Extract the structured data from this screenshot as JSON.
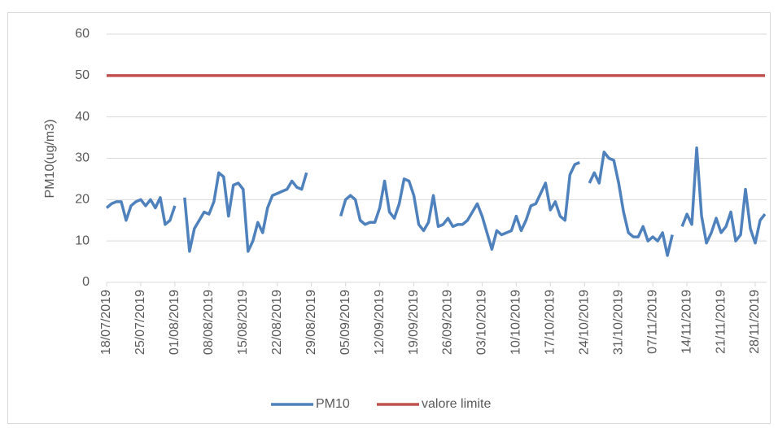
{
  "chart_data": {
    "type": "line",
    "y_label": "PM10(ug/m3)",
    "x": [
      "2019-07-18",
      "2019-07-19",
      "2019-07-20",
      "2019-07-21",
      "2019-07-22",
      "2019-07-23",
      "2019-07-24",
      "2019-07-25",
      "2019-07-26",
      "2019-07-27",
      "2019-07-28",
      "2019-07-29",
      "2019-07-30",
      "2019-07-31",
      "2019-08-01",
      "2019-08-02",
      "2019-08-03",
      "2019-08-04",
      "2019-08-05",
      "2019-08-06",
      "2019-08-07",
      "2019-08-08",
      "2019-08-09",
      "2019-08-10",
      "2019-08-11",
      "2019-08-12",
      "2019-08-13",
      "2019-08-14",
      "2019-08-15",
      "2019-08-16",
      "2019-08-17",
      "2019-08-18",
      "2019-08-19",
      "2019-08-20",
      "2019-08-21",
      "2019-08-22",
      "2019-08-23",
      "2019-08-24",
      "2019-08-25",
      "2019-08-26",
      "2019-08-27",
      "2019-08-28",
      "2019-08-29",
      "2019-08-30",
      "2019-08-31",
      "2019-09-01",
      "2019-09-02",
      "2019-09-03",
      "2019-09-04",
      "2019-09-05",
      "2019-09-06",
      "2019-09-07",
      "2019-09-08",
      "2019-09-09",
      "2019-09-10",
      "2019-09-11",
      "2019-09-12",
      "2019-09-13",
      "2019-09-14",
      "2019-09-15",
      "2019-09-16",
      "2019-09-17",
      "2019-09-18",
      "2019-09-19",
      "2019-09-20",
      "2019-09-21",
      "2019-09-22",
      "2019-09-23",
      "2019-09-24",
      "2019-09-25",
      "2019-09-26",
      "2019-09-27",
      "2019-09-28",
      "2019-09-29",
      "2019-09-30",
      "2019-10-01",
      "2019-10-02",
      "2019-10-03",
      "2019-10-04",
      "2019-10-05",
      "2019-10-06",
      "2019-10-07",
      "2019-10-08",
      "2019-10-09",
      "2019-10-10",
      "2019-10-11",
      "2019-10-12",
      "2019-10-13",
      "2019-10-14",
      "2019-10-15",
      "2019-10-16",
      "2019-10-17",
      "2019-10-18",
      "2019-10-19",
      "2019-10-20",
      "2019-10-21",
      "2019-10-22",
      "2019-10-23",
      "2019-10-24",
      "2019-10-25",
      "2019-10-26",
      "2019-10-27",
      "2019-10-28",
      "2019-10-29",
      "2019-10-30",
      "2019-10-31",
      "2019-11-01",
      "2019-11-02",
      "2019-11-03",
      "2019-11-04",
      "2019-11-05",
      "2019-11-06",
      "2019-11-07",
      "2019-11-08",
      "2019-11-09",
      "2019-11-10",
      "2019-11-11",
      "2019-11-12",
      "2019-11-13",
      "2019-11-14",
      "2019-11-15",
      "2019-11-16",
      "2019-11-17",
      "2019-11-18",
      "2019-11-19",
      "2019-11-20",
      "2019-11-21",
      "2019-11-22",
      "2019-11-23",
      "2019-11-24",
      "2019-11-25",
      "2019-11-26",
      "2019-11-27",
      "2019-11-28",
      "2019-11-29",
      "2019-11-30"
    ],
    "series": [
      {
        "name": "PM10",
        "color": "#4f81bd",
        "values": [
          18,
          19,
          19.5,
          19.5,
          15,
          18.5,
          19.5,
          20,
          18.5,
          20,
          18,
          20.5,
          14,
          15,
          18.5,
          null,
          20.5,
          7.5,
          13,
          15,
          17,
          16.5,
          19.5,
          26.5,
          25.5,
          16,
          23.5,
          24,
          22.5,
          7.5,
          10,
          14.5,
          12,
          18,
          21,
          21.5,
          22,
          22.5,
          24.5,
          23,
          22.5,
          26.5,
          null,
          null,
          null,
          null,
          null,
          null,
          16,
          20,
          21,
          20,
          15,
          14,
          14.5,
          14.5,
          18,
          24.5,
          17,
          15.5,
          19,
          25,
          24.5,
          21,
          14,
          12.5,
          14.5,
          21,
          13.5,
          14,
          15.5,
          13.5,
          14,
          14,
          15,
          17,
          19,
          16,
          12,
          8,
          12.5,
          11.5,
          12,
          12.5,
          16,
          12.5,
          15,
          18.5,
          19,
          21.5,
          24,
          17.5,
          19.5,
          16,
          15,
          26,
          28.5,
          29,
          null,
          24,
          26.5,
          24,
          31.5,
          30,
          29.5,
          24,
          17,
          12,
          11,
          11,
          13.5,
          10,
          11,
          10,
          12,
          6.5,
          11.5,
          null,
          13.5,
          16.5,
          14,
          32.5,
          16,
          9.5,
          12,
          15.5,
          12,
          13.5,
          17,
          10,
          11.5,
          22.5,
          13,
          9.5,
          15,
          16.5
        ]
      },
      {
        "name": "valore limite",
        "color": "#c0504d",
        "values": [
          50,
          50,
          50,
          50,
          50,
          50,
          50,
          50,
          50,
          50,
          50,
          50,
          50,
          50,
          50,
          50,
          50,
          50,
          50,
          50,
          50,
          50,
          50,
          50,
          50,
          50,
          50,
          50,
          50,
          50,
          50,
          50,
          50,
          50,
          50,
          50,
          50,
          50,
          50,
          50,
          50,
          50,
          50,
          50,
          50,
          50,
          50,
          50,
          50,
          50,
          50,
          50,
          50,
          50,
          50,
          50,
          50,
          50,
          50,
          50,
          50,
          50,
          50,
          50,
          50,
          50,
          50,
          50,
          50,
          50,
          50,
          50,
          50,
          50,
          50,
          50,
          50,
          50,
          50,
          50,
          50,
          50,
          50,
          50,
          50,
          50,
          50,
          50,
          50,
          50,
          50,
          50,
          50,
          50,
          50,
          50,
          50,
          50,
          50,
          50,
          50,
          50,
          50,
          50,
          50,
          50,
          50,
          50,
          50,
          50,
          50,
          50,
          50,
          50,
          50,
          50,
          50,
          50,
          50,
          50,
          50,
          50,
          50,
          50,
          50,
          50,
          50,
          50,
          50,
          50,
          50,
          50,
          50,
          50,
          50,
          50
        ]
      }
    ],
    "xlim": [
      "2019-07-18",
      "2019-11-30"
    ],
    "xticks": [
      {
        "value": "2019-07-18",
        "label": "18/07/2019"
      },
      {
        "value": "2019-07-25",
        "label": "25/07/2019"
      },
      {
        "value": "2019-08-01",
        "label": "01/08/2019"
      },
      {
        "value": "2019-08-08",
        "label": "08/08/2019"
      },
      {
        "value": "2019-08-15",
        "label": "15/08/2019"
      },
      {
        "value": "2019-08-22",
        "label": "22/08/2019"
      },
      {
        "value": "2019-08-29",
        "label": "29/08/2019"
      },
      {
        "value": "2019-09-05",
        "label": "05/09/2019"
      },
      {
        "value": "2019-09-12",
        "label": "12/09/2019"
      },
      {
        "value": "2019-09-19",
        "label": "19/09/2019"
      },
      {
        "value": "2019-09-26",
        "label": "26/09/2019"
      },
      {
        "value": "2019-10-03",
        "label": "03/10/2019"
      },
      {
        "value": "2019-10-10",
        "label": "10/10/2019"
      },
      {
        "value": "2019-10-17",
        "label": "17/10/2019"
      },
      {
        "value": "2019-10-24",
        "label": "24/10/2019"
      },
      {
        "value": "2019-10-31",
        "label": "31/10/2019"
      },
      {
        "value": "2019-11-07",
        "label": "07/11/2019"
      },
      {
        "value": "2019-11-14",
        "label": "14/11/2019"
      },
      {
        "value": "2019-11-21",
        "label": "21/11/2019"
      },
      {
        "value": "2019-11-28",
        "label": "28/11/2019"
      }
    ],
    "ylim": [
      0,
      60
    ],
    "yticks": [
      0,
      10,
      20,
      30,
      40,
      50,
      60
    ],
    "grid": true,
    "legend": "bottom"
  }
}
